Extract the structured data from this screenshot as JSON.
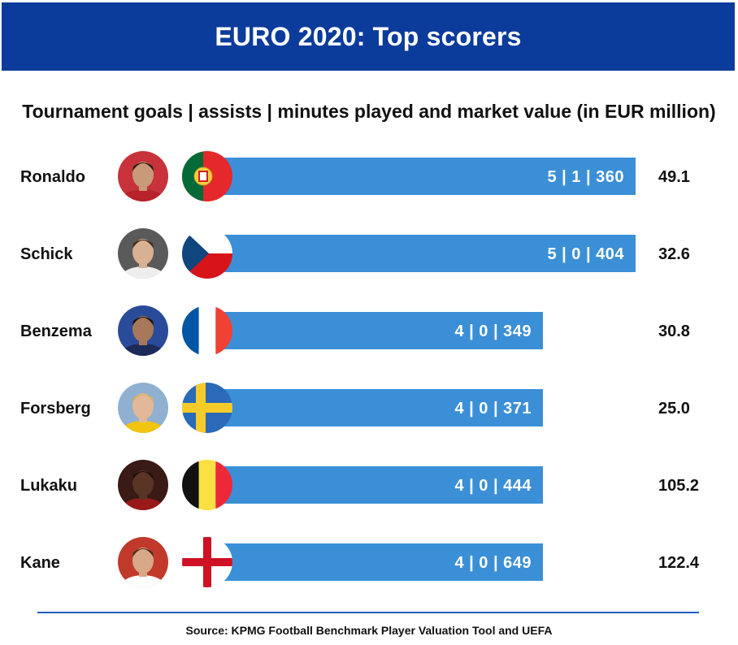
{
  "header": {
    "title": "EURO 2020: Top scorers"
  },
  "subtitle": "Tournament goals | assists | minutes played and market value (in EUR million)",
  "source": "Source: KPMG Football Benchmark Player Valuation Tool and UEFA",
  "colors": {
    "banner": "#0b3c9b",
    "bar": "#3b8fd6",
    "divider": "#1f5fc0"
  },
  "chart_data": {
    "type": "bar",
    "orientation": "horizontal",
    "title": "EURO 2020: Top scorers",
    "subtitle": "Tournament goals | assists | minutes played and market value (in EUR million)",
    "categories": [
      "Ronaldo",
      "Schick",
      "Benzema",
      "Forsberg",
      "Lukaku",
      "Kane"
    ],
    "series": [
      {
        "name": "goals",
        "values": [
          5,
          5,
          4,
          4,
          4,
          4
        ]
      },
      {
        "name": "assists",
        "values": [
          1,
          0,
          0,
          0,
          0,
          0
        ]
      },
      {
        "name": "minutes played",
        "values": [
          360,
          404,
          349,
          371,
          444,
          649
        ]
      },
      {
        "name": "market value",
        "values": [
          49.1,
          32.6,
          30.8,
          25.0,
          105.2,
          122.4
        ]
      }
    ],
    "bar_labels": [
      "5 | 1 | 360",
      "5 | 0 | 404",
      "4 | 0 | 349",
      "4 | 0 | 371",
      "4 | 0 | 444",
      "4 | 0 | 649"
    ],
    "value_labels": [
      "49.1",
      "32.6",
      "30.8",
      "25.0",
      "105.2",
      "122.4"
    ],
    "bar_metric": "goals",
    "flags": [
      "portugal-flag-icon",
      "czech-flag-icon",
      "france-flag-icon",
      "sweden-flag-icon",
      "belgium-flag-icon",
      "england-flag-icon"
    ],
    "avatars": [
      "ronaldo-avatar",
      "schick-avatar",
      "benzema-avatar",
      "forsberg-avatar",
      "lukaku-avatar",
      "kane-avatar"
    ],
    "grid": false,
    "legend": "none"
  }
}
